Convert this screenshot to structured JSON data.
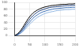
{
  "chart_data": {
    "type": "line",
    "x": [
      0,
      10,
      20,
      30,
      40,
      50,
      60,
      70,
      80,
      90,
      100,
      110,
      120,
      130,
      140,
      150,
      160,
      170,
      180,
      190,
      200
    ],
    "series": [
      {
        "color": "#000000",
        "values": [
          0,
          6,
          16,
          30,
          45,
          58,
          68,
          75,
          80,
          84,
          87,
          89,
          91,
          92,
          93,
          94,
          95,
          95,
          96,
          96,
          97
        ]
      },
      {
        "color": "#1f3f7a",
        "values": [
          0,
          4,
          12,
          24,
          38,
          50,
          60,
          68,
          74,
          78,
          81,
          84,
          86,
          87,
          88,
          89,
          90,
          91,
          91,
          92,
          92
        ]
      },
      {
        "color": "#3b6fb6",
        "values": [
          0,
          3,
          9,
          19,
          31,
          42,
          52,
          60,
          66,
          71,
          74,
          77,
          79,
          81,
          82,
          83,
          84,
          85,
          85,
          86,
          86
        ]
      },
      {
        "color": "#8db4e2",
        "values": [
          0,
          2,
          7,
          15,
          25,
          35,
          44,
          52,
          58,
          63,
          67,
          70,
          72,
          74,
          76,
          77,
          78,
          79,
          79,
          80,
          80
        ]
      }
    ],
    "xlim": [
      0,
      200
    ],
    "xticks": [
      0,
      50,
      100,
      150,
      200
    ],
    "ylim": [
      0,
      100
    ],
    "yticks": [
      0,
      20,
      40,
      60,
      80,
      100
    ],
    "grid": true
  }
}
